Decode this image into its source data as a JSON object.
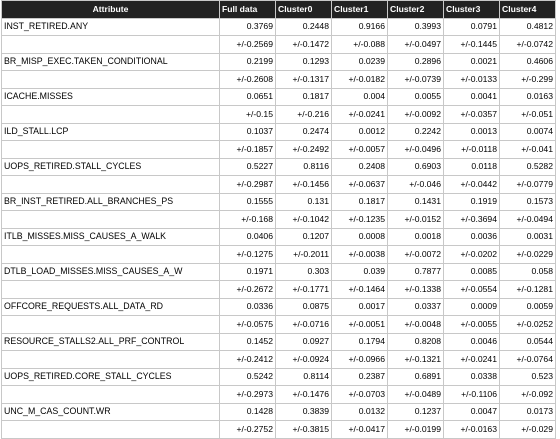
{
  "header": [
    "Attribute",
    "Full data",
    "Cluster0",
    "Cluster1",
    "Cluster2",
    "Cluster3",
    "Cluster4"
  ],
  "rows": [
    {
      "attribute": "INST_RETIRED.ANY",
      "values": [
        "0.3769",
        "0.2448",
        "0.9166",
        "0.3993",
        "0.0791",
        "0.4812"
      ],
      "errors": [
        "+/-0.2569",
        "+/-0.1472",
        "+/-0.088",
        "+/-0.0497",
        "+/-0.1445",
        "+/-0.0742"
      ]
    },
    {
      "attribute": "BR_MISP_EXEC.TAKEN_CONDITIONAL",
      "values": [
        "0.2199",
        "0.1293",
        "0.0239",
        "0.2896",
        "0.0021",
        "0.4606"
      ],
      "errors": [
        "+/-0.2608",
        "+/-0.1317",
        "+/-0.0182",
        "+/-0.0739",
        "+/-0.0133",
        "+/-0.299"
      ]
    },
    {
      "attribute": "ICACHE.MISSES",
      "values": [
        "0.0651",
        "0.1817",
        "0.004",
        "0.0055",
        "0.0041",
        "0.0163"
      ],
      "errors": [
        "+/-0.15",
        "+/-0.216",
        "+/-0.0241",
        "+/-0.0092",
        "+/-0.0357",
        "+/-0.051"
      ]
    },
    {
      "attribute": "ILD_STALL.LCP",
      "values": [
        "0.1037",
        "0.2474",
        "0.0012",
        "0.2242",
        "0.0013",
        "0.0074"
      ],
      "errors": [
        "+/-0.1857",
        "+/-0.2492",
        "+/-0.0057",
        "+/-0.0496",
        "+/-0.0118",
        "+/-0.041"
      ]
    },
    {
      "attribute": "UOPS_RETIRED.STALL_CYCLES",
      "values": [
        "0.5227",
        "0.8116",
        "0.2408",
        "0.6903",
        "0.0118",
        "0.5282"
      ],
      "errors": [
        "+/-0.2987",
        "+/-0.1456",
        "+/-0.0637",
        "+/-0.046",
        "+/-0.0442",
        "+/-0.0779"
      ]
    },
    {
      "attribute": "BR_INST_RETIRED.ALL_BRANCHES_PS",
      "values": [
        "0.1555",
        "0.131",
        "0.1817",
        "0.1431",
        "0.1919",
        "0.1573"
      ],
      "errors": [
        "+/-0.168",
        "+/-0.1042",
        "+/-0.1235",
        "+/-0.0152",
        "+/-0.3694",
        "+/-0.0494"
      ]
    },
    {
      "attribute": "ITLB_MISSES.MISS_CAUSES_A_WALK",
      "values": [
        "0.0406",
        "0.1207",
        "0.0008",
        "0.0018",
        "0.0036",
        "0.0031"
      ],
      "errors": [
        "+/-0.1275",
        "+/-0.2011",
        "+/-0.0038",
        "+/-0.0072",
        "+/-0.0202",
        "+/-0.0229"
      ]
    },
    {
      "attribute": "DTLB_LOAD_MISSES.MISS_CAUSES_A_W",
      "values": [
        "0.1971",
        "0.303",
        "0.039",
        "0.7877",
        "0.0085",
        "0.058"
      ],
      "errors": [
        "+/-0.2672",
        "+/-0.1771",
        "+/-0.1464",
        "+/-0.1338",
        "+/-0.0554",
        "+/-0.1281"
      ]
    },
    {
      "attribute": "OFFCORE_REQUESTS.ALL_DATA_RD",
      "values": [
        "0.0336",
        "0.0875",
        "0.0017",
        "0.0337",
        "0.0009",
        "0.0059"
      ],
      "errors": [
        "+/-0.0575",
        "+/-0.0716",
        "+/-0.0051",
        "+/-0.0048",
        "+/-0.0055",
        "+/-0.0252"
      ]
    },
    {
      "attribute": "RESOURCE_STALLS2.ALL_PRF_CONTROL",
      "values": [
        "0.1452",
        "0.0927",
        "0.1794",
        "0.8208",
        "0.0046",
        "0.0544"
      ],
      "errors": [
        "+/-0.2412",
        "+/-0.0924",
        "+/-0.0966",
        "+/-0.1321",
        "+/-0.0241",
        "+/-0.0764"
      ]
    },
    {
      "attribute": "UOPS_RETIRED.CORE_STALL_CYCLES",
      "values": [
        "0.5242",
        "0.8114",
        "0.2387",
        "0.6891",
        "0.0338",
        "0.523"
      ],
      "errors": [
        "+/-0.2973",
        "+/-0.1476",
        "+/-0.0703",
        "+/-0.0489",
        "+/-0.1106",
        "+/-0.092"
      ]
    },
    {
      "attribute": "UNC_M_CAS_COUNT.WR",
      "values": [
        "0.1428",
        "0.3839",
        "0.0132",
        "0.1237",
        "0.0047",
        "0.0173"
      ],
      "errors": [
        "+/-0.2752",
        "+/-0.3815",
        "+/-0.0417",
        "+/-0.0199",
        "+/-0.0163",
        "+/-0.029"
      ]
    }
  ]
}
